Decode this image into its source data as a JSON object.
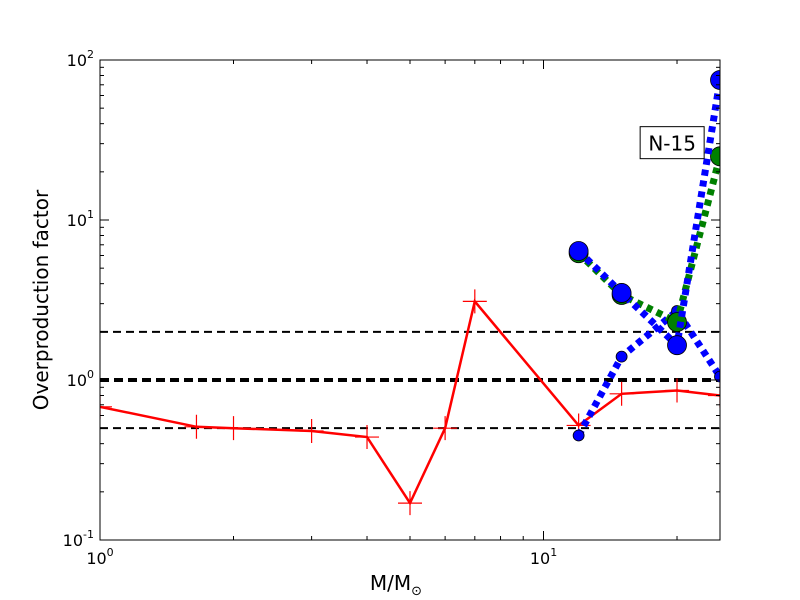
{
  "chart_data": {
    "type": "line",
    "title": "",
    "xlabel": "M/M",
    "xlabel_sub": "⊙",
    "ylabel": "Overproduction factor",
    "xscale": "log",
    "yscale": "log",
    "xlim": [
      1,
      25
    ],
    "ylim": [
      0.1,
      100
    ],
    "x_ticks": [
      {
        "value": 1,
        "base": "10",
        "exp": "0"
      },
      {
        "value": 10,
        "base": "10",
        "exp": "1"
      }
    ],
    "y_ticks": [
      {
        "value": 0.1,
        "base": "10",
        "exp": "-1"
      },
      {
        "value": 1,
        "base": "10",
        "exp": "0"
      },
      {
        "value": 10,
        "base": "10",
        "exp": "1"
      },
      {
        "value": 100,
        "base": "10",
        "exp": "2"
      }
    ],
    "reference_lines": [
      {
        "y": 2.0,
        "style": "dashed",
        "color": "#000000",
        "width": "thin"
      },
      {
        "y": 1.0,
        "style": "dashed",
        "color": "#000000",
        "width": "thick"
      },
      {
        "y": 0.5,
        "style": "dashed",
        "color": "#000000",
        "width": "thin"
      }
    ],
    "series": [
      {
        "color": "#ff0000",
        "style": "solid",
        "marker": "plus",
        "x": [
          1.0,
          1.65,
          2.0,
          3.0,
          4.0,
          5.0,
          6.0,
          7.0,
          12.0,
          15.0,
          20.0,
          25.0
        ],
        "y": [
          0.68,
          0.51,
          0.5,
          0.48,
          0.44,
          0.17,
          0.5,
          3.1,
          0.52,
          0.82,
          0.86,
          0.8
        ]
      },
      {
        "color": "#0000ff",
        "style": "dotted",
        "marker": "circle-small",
        "x": [
          12.0,
          15.0,
          20.0,
          25.0
        ],
        "y": [
          0.45,
          1.4,
          2.7,
          1.05
        ]
      },
      {
        "color": "#008000",
        "style": "dotted",
        "marker": "circle",
        "x": [
          12.0,
          15.0,
          20.0,
          25.0
        ],
        "y": [
          6.2,
          3.4,
          2.3,
          25.0
        ]
      },
      {
        "color": "#0000ff",
        "style": "dotted",
        "marker": "circle",
        "x": [
          12.0,
          15.0,
          20.0,
          25.0
        ],
        "y": [
          6.4,
          3.5,
          1.65,
          75.0
        ]
      }
    ],
    "annotations": [
      {
        "text": "N-15",
        "x": 19.5,
        "y": 30
      }
    ],
    "grid": false
  }
}
